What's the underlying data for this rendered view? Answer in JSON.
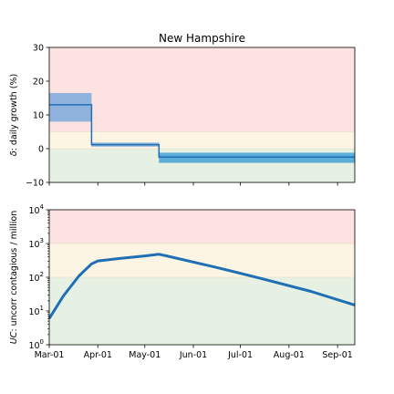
{
  "chart_data": [
    {
      "type": "line",
      "title": "New Hampshire",
      "ylabel_var": "δ",
      "ylabel_rest": ": daily growth (%)",
      "ylim": [
        -10,
        30
      ],
      "yticks": [
        "30",
        "20",
        "10",
        "0",
        "−10"
      ],
      "ytick_values": [
        30,
        20,
        10,
        0,
        -10
      ],
      "xlim": [
        "2020-03-01",
        "2020-09-12"
      ],
      "zones": [
        {
          "from": 5,
          "to": 30,
          "color": "#fde2e2"
        },
        {
          "from": 0,
          "to": 5,
          "color": "#fdf5e4"
        },
        {
          "from": -10,
          "to": 0,
          "color": "#e6f0e3"
        }
      ],
      "series": [
        {
          "kind": "step",
          "color": "#1f6fb4",
          "segments": [
            {
              "start": "2020-03-01",
              "end": "2020-03-28",
              "value": 13,
              "low": 8,
              "high": 16.5,
              "band_color": "#8fb3dd"
            },
            {
              "start": "2020-03-28",
              "end": "2020-05-10",
              "value": 1.2,
              "low": 0.6,
              "high": 1.8,
              "band_color": "#8fb3dd"
            },
            {
              "start": "2020-05-10",
              "end": "2020-09-12",
              "value": -2.5,
              "low": -4.2,
              "high": -1.2,
              "band_color": "#5aaed8"
            }
          ]
        }
      ]
    },
    {
      "type": "line",
      "ylabel_var": "UC",
      "ylabel_rest": ": uncorr contagious / million",
      "yscale": "log",
      "ylim": [
        1,
        10000
      ],
      "yticks": [
        {
          "base": "10",
          "exp": "4",
          "value": 10000
        },
        {
          "base": "10",
          "exp": "3",
          "value": 1000
        },
        {
          "base": "10",
          "exp": "2",
          "value": 100
        },
        {
          "base": "10",
          "exp": "1",
          "value": 10
        },
        {
          "base": "10",
          "exp": "0",
          "value": 1
        }
      ],
      "xlim": [
        "2020-03-01",
        "2020-09-12"
      ],
      "xticks": [
        {
          "label": "Mar-01",
          "date": "2020-03-01"
        },
        {
          "label": "Apr-01",
          "date": "2020-04-01"
        },
        {
          "label": "May-01",
          "date": "2020-05-01"
        },
        {
          "label": "Jun-01",
          "date": "2020-06-01"
        },
        {
          "label": "Jul-01",
          "date": "2020-07-01"
        },
        {
          "label": "Aug-01",
          "date": "2020-08-01"
        },
        {
          "label": "Sep-01",
          "date": "2020-09-01"
        }
      ],
      "zones": [
        {
          "from": 1000,
          "to": 10000,
          "color": "#fde2e2"
        },
        {
          "from": 100,
          "to": 1000,
          "color": "#fdf5e4"
        },
        {
          "from": 1,
          "to": 100,
          "color": "#e6f0e3"
        }
      ],
      "series": [
        {
          "color": "#1f6fb4",
          "points": [
            {
              "x": "2020-03-01",
              "y": 6
            },
            {
              "x": "2020-03-10",
              "y": 28
            },
            {
              "x": "2020-03-20",
              "y": 110
            },
            {
              "x": "2020-03-28",
              "y": 250
            },
            {
              "x": "2020-04-01",
              "y": 305
            },
            {
              "x": "2020-04-15",
              "y": 360
            },
            {
              "x": "2020-05-01",
              "y": 430
            },
            {
              "x": "2020-05-10",
              "y": 480
            },
            {
              "x": "2020-05-15",
              "y": 430
            },
            {
              "x": "2020-06-15",
              "y": 200
            },
            {
              "x": "2020-07-15",
              "y": 90
            },
            {
              "x": "2020-08-15",
              "y": 38
            },
            {
              "x": "2020-09-12",
              "y": 15
            }
          ]
        }
      ]
    }
  ]
}
